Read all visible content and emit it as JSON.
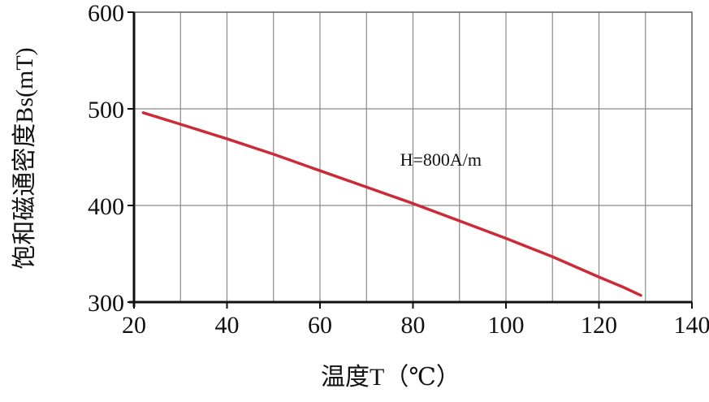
{
  "chart_data": {
    "type": "line",
    "title": "",
    "xlabel": "温度T（℃）",
    "ylabel": "饱和磁通密度Bs(mT)",
    "xlim": [
      20,
      140
    ],
    "ylim": [
      300,
      600
    ],
    "xticks": [
      20,
      40,
      60,
      80,
      100,
      120,
      140
    ],
    "yticks": [
      300,
      400,
      500,
      600
    ],
    "x_minor_grid_step": 10,
    "grid": true,
    "legend": "none",
    "series": [
      {
        "color": "#cc2a36",
        "x": [
          22,
          30,
          40,
          50,
          60,
          70,
          80,
          90,
          100,
          110,
          120,
          125,
          129
        ],
        "y": [
          496,
          484,
          469,
          453,
          436,
          419,
          402,
          384,
          366,
          347,
          326,
          316,
          307
        ]
      }
    ],
    "annotations": [
      {
        "text": "H=800A/m",
        "x": 86,
        "y": 441
      }
    ]
  }
}
